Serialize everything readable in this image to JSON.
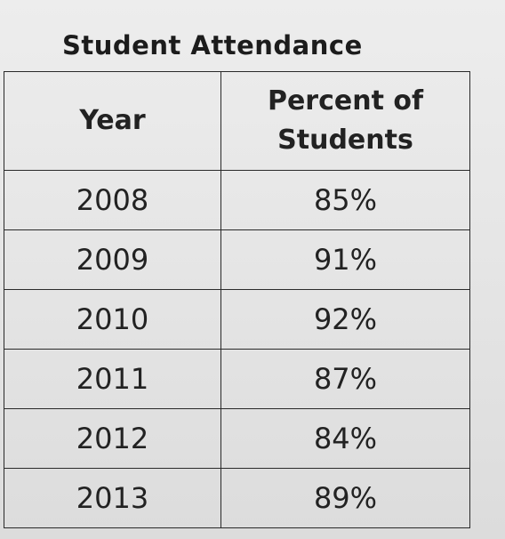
{
  "title": "Student Attendance",
  "headers": {
    "year": "Year",
    "percent": "Percent of Students"
  },
  "rows": [
    {
      "year": "2008",
      "percent": "85%"
    },
    {
      "year": "2009",
      "percent": "91%"
    },
    {
      "year": "2010",
      "percent": "92%"
    },
    {
      "year": "2011",
      "percent": "87%"
    },
    {
      "year": "2012",
      "percent": "84%"
    },
    {
      "year": "2013",
      "percent": "89%"
    }
  ]
}
